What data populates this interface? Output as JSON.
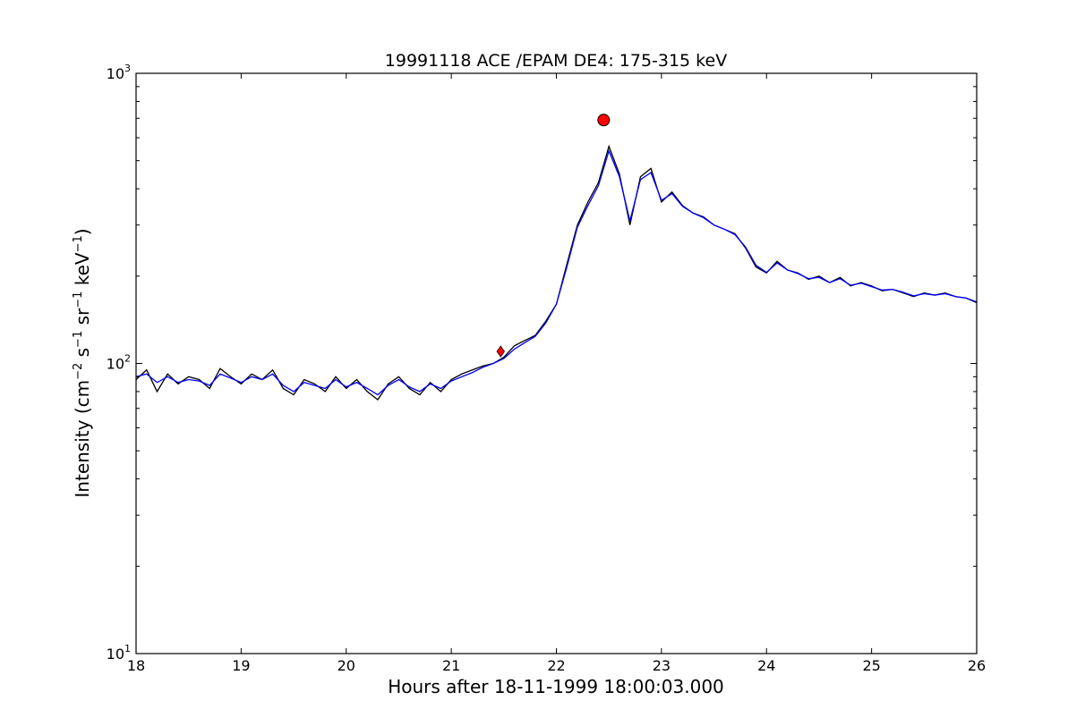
{
  "chart_data": {
    "type": "line",
    "title": "19991118 ACE /EPAM DE4: 175-315 keV",
    "xlabel": "Hours after 18-11-1999 18:00:03.000",
    "ylabel_parts": {
      "prefix": "Intensity (cm",
      "exp1": "−2",
      "s": " s",
      "exp2": "−1",
      "sr": " sr",
      "exp3": "−1",
      "kev": " keV",
      "exp4": "−1",
      "suffix": ")"
    },
    "xlim": [
      18,
      26
    ],
    "ylim": [
      10,
      1000
    ],
    "y_scale": "log",
    "x_ticks": [
      18,
      19,
      20,
      21,
      22,
      23,
      24,
      25,
      26
    ],
    "x_tick_labels": [
      "18",
      "19",
      "20",
      "21",
      "22",
      "23",
      "24",
      "25",
      "26"
    ],
    "y_ticks": [
      10,
      100,
      1000
    ],
    "y_tick_base": "10",
    "y_tick_exponents": [
      "1",
      "2",
      "3"
    ],
    "grid": false,
    "series": [
      {
        "role": "raw",
        "color": "#000000",
        "x": [
          18.0,
          18.1,
          18.2,
          18.3,
          18.4,
          18.5,
          18.6,
          18.7,
          18.8,
          18.9,
          19.0,
          19.1,
          19.2,
          19.3,
          19.4,
          19.5,
          19.6,
          19.7,
          19.8,
          19.9,
          20.0,
          20.1,
          20.2,
          20.3,
          20.4,
          20.5,
          20.6,
          20.7,
          20.8,
          20.9,
          21.0,
          21.1,
          21.2,
          21.3,
          21.4,
          21.5,
          21.6,
          21.7,
          21.8,
          21.9,
          22.0,
          22.1,
          22.2,
          22.3,
          22.4,
          22.5,
          22.6,
          22.7,
          22.8,
          22.9,
          23.0,
          23.1,
          23.2,
          23.3,
          23.4,
          23.5,
          23.6,
          23.7,
          23.8,
          23.9,
          24.0,
          24.1,
          24.2,
          24.3,
          24.4,
          24.5,
          24.6,
          24.7,
          24.8,
          24.9,
          25.0,
          25.1,
          25.2,
          25.3,
          25.4,
          25.5,
          25.6,
          25.7,
          25.8,
          25.9,
          26.0
        ],
        "y": [
          88,
          95,
          80,
          92,
          85,
          90,
          88,
          82,
          96,
          90,
          85,
          92,
          88,
          95,
          82,
          78,
          88,
          85,
          80,
          90,
          82,
          88,
          80,
          75,
          85,
          90,
          82,
          78,
          86,
          80,
          88,
          92,
          95,
          98,
          100,
          105,
          115,
          120,
          125,
          140,
          160,
          220,
          300,
          360,
          420,
          560,
          450,
          300,
          440,
          470,
          360,
          390,
          350,
          330,
          320,
          300,
          290,
          280,
          250,
          215,
          205,
          225,
          210,
          205,
          195,
          200,
          190,
          198,
          185,
          190,
          185,
          178,
          180,
          175,
          170,
          175,
          172,
          175,
          170,
          168,
          162
        ]
      },
      {
        "role": "smoothed",
        "color": "#0000ff",
        "x": [
          18.0,
          18.1,
          18.2,
          18.3,
          18.4,
          18.5,
          18.6,
          18.7,
          18.8,
          18.9,
          19.0,
          19.1,
          19.2,
          19.3,
          19.4,
          19.5,
          19.6,
          19.7,
          19.8,
          19.9,
          20.0,
          20.1,
          20.2,
          20.3,
          20.4,
          20.5,
          20.6,
          20.7,
          20.8,
          20.9,
          21.0,
          21.1,
          21.2,
          21.3,
          21.4,
          21.5,
          21.6,
          21.7,
          21.8,
          21.9,
          22.0,
          22.1,
          22.2,
          22.3,
          22.4,
          22.5,
          22.6,
          22.7,
          22.8,
          22.9,
          23.0,
          23.1,
          23.2,
          23.3,
          23.4,
          23.5,
          23.6,
          23.7,
          23.8,
          23.9,
          24.0,
          24.1,
          24.2,
          24.3,
          24.4,
          24.5,
          24.6,
          24.7,
          24.8,
          24.9,
          25.0,
          25.1,
          25.2,
          25.3,
          25.4,
          25.5,
          25.6,
          25.7,
          25.8,
          25.9,
          26.0
        ],
        "y": [
          90,
          92,
          86,
          90,
          86,
          88,
          87,
          84,
          92,
          89,
          86,
          90,
          88,
          92,
          84,
          80,
          86,
          84,
          82,
          88,
          83,
          86,
          82,
          78,
          84,
          88,
          83,
          80,
          85,
          82,
          87,
          90,
          93,
          97,
          100,
          104,
          112,
          118,
          124,
          138,
          160,
          215,
          295,
          350,
          410,
          540,
          440,
          310,
          430,
          455,
          365,
          385,
          348,
          330,
          318,
          300,
          290,
          278,
          252,
          218,
          206,
          222,
          210,
          204,
          196,
          198,
          190,
          196,
          186,
          189,
          184,
          179,
          180,
          176,
          171,
          174,
          172,
          174,
          170,
          168,
          163
        ]
      }
    ],
    "markers": [
      {
        "shape": "diamond",
        "x": 21.47,
        "y": 110,
        "color": "#ff0000"
      },
      {
        "shape": "circle",
        "x": 22.45,
        "y": 690,
        "color": "#ff0000"
      }
    ]
  }
}
